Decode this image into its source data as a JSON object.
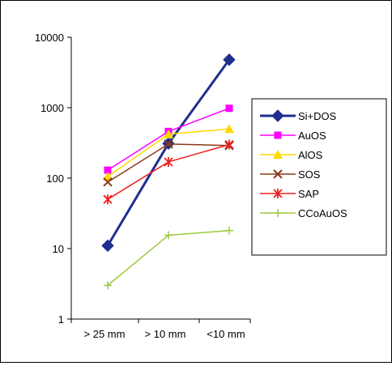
{
  "chart_data": {
    "type": "line",
    "y_scale": "log",
    "ylim": [
      1,
      10000
    ],
    "y_ticks": [
      {
        "value": 1,
        "label": "1"
      },
      {
        "value": 10,
        "label": "10"
      },
      {
        "value": 100,
        "label": "100"
      },
      {
        "value": 1000,
        "label": "1000"
      },
      {
        "value": 10000,
        "label": "10000"
      }
    ],
    "categories": [
      "> 25 mm",
      "> 10 mm",
      "<10 mm"
    ],
    "grid": false,
    "legend_position": "right",
    "series": [
      {
        "name": "Si+DOS",
        "color": "#1f2f8f",
        "marker": "diamond",
        "line_width": "thick",
        "values": [
          11,
          310,
          4800
        ]
      },
      {
        "name": "AuOS",
        "color": "#ff00ff",
        "marker": "square",
        "line_width": "thin",
        "values": [
          130,
          460,
          980
        ]
      },
      {
        "name": "AlOS",
        "color": "#ffd700",
        "marker": "triangle",
        "line_width": "thin",
        "values": [
          105,
          420,
          500
        ]
      },
      {
        "name": "SOS",
        "color": "#8b3a1a",
        "marker": "x",
        "line_width": "thin",
        "values": [
          88,
          305,
          290
        ]
      },
      {
        "name": "SAP",
        "color": "#ee2020",
        "marker": "star",
        "line_width": "thin",
        "values": [
          50,
          170,
          300
        ]
      },
      {
        "name": "CCoAuOS",
        "color": "#9ccb3b",
        "marker": "plus",
        "line_width": "thin",
        "values": [
          3,
          15.5,
          18
        ]
      }
    ]
  }
}
